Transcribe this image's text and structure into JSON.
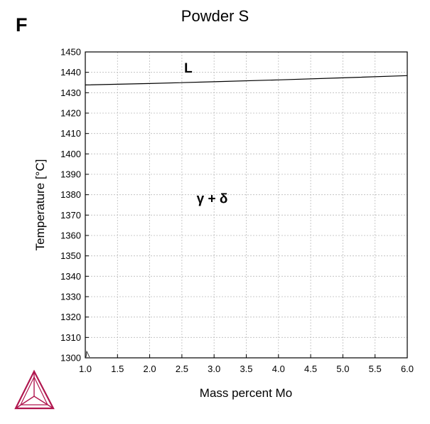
{
  "panel_label": "F",
  "chart_data": {
    "type": "line",
    "title": "Powder S",
    "xlabel": "Mass percent Mo",
    "ylabel": "Temperature [°C]",
    "xlim": [
      1.0,
      6.0
    ],
    "ylim": [
      1300,
      1450
    ],
    "x_ticks": [
      1.0,
      1.5,
      2.0,
      2.5,
      3.0,
      3.5,
      4.0,
      4.5,
      5.0,
      5.5,
      6.0
    ],
    "x_tick_labels": [
      "1.0",
      "1.5",
      "2.0",
      "2.5",
      "3.0",
      "3.5",
      "4.0",
      "4.5",
      "5.0",
      "5.5",
      "6.0"
    ],
    "y_ticks": [
      1300,
      1310,
      1320,
      1330,
      1340,
      1350,
      1360,
      1370,
      1380,
      1390,
      1400,
      1410,
      1420,
      1430,
      1440,
      1450
    ],
    "grid": true,
    "series": [
      {
        "x": [
          1.0,
          2.0,
          3.0,
          4.0,
          5.0,
          6.0
        ],
        "y": [
          1433.8,
          1434.5,
          1435.4,
          1436.3,
          1437.3,
          1438.4
        ]
      }
    ],
    "annotations": [
      {
        "text": "L",
        "x": 2.6,
        "y": 1442
      },
      {
        "text": "γ + δ",
        "x": 2.97,
        "y": 1378
      }
    ],
    "colors": {
      "line": "#000000",
      "grid": "#bbbbbb",
      "logo": "#b0174f"
    }
  },
  "logo_icon": "thermo-calc-triangle-icon"
}
